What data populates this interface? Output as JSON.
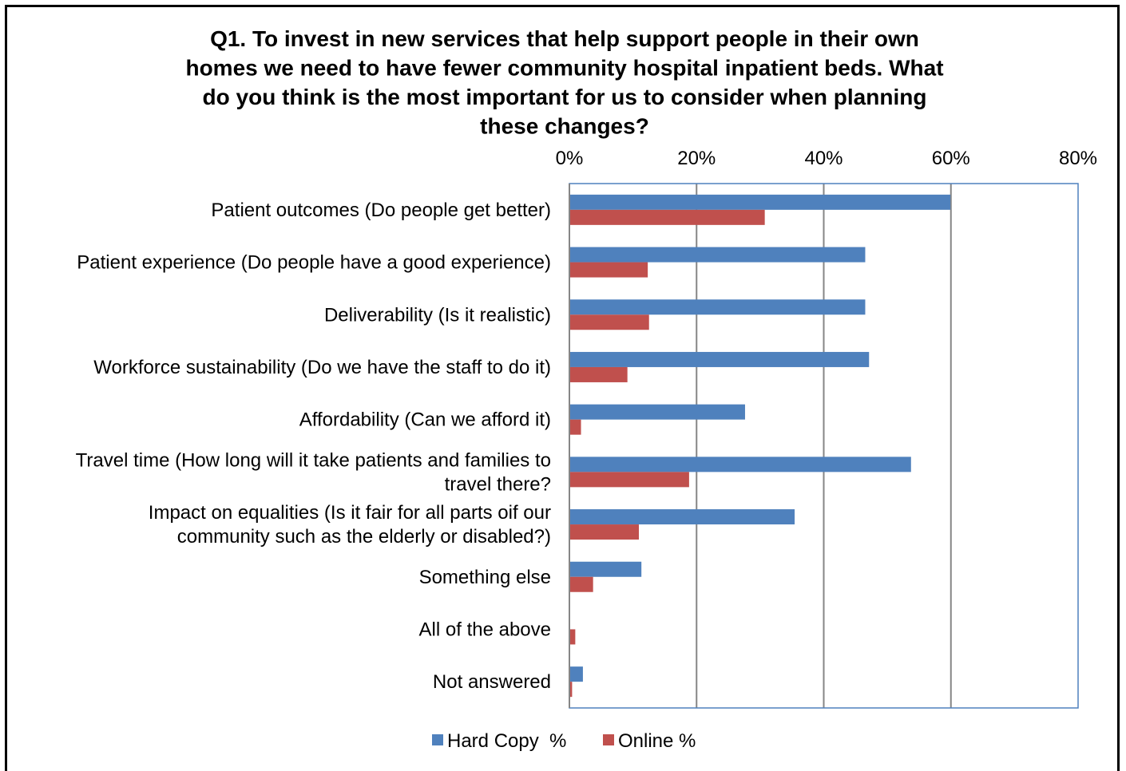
{
  "chart_data": {
    "type": "bar",
    "orientation": "horizontal",
    "title": "Q1. To invest in new services that help support people in their own homes we need to have fewer community hospital inpatient beds. What do you think is the most important for us to consider when planning these changes?",
    "title_lines": [
      "Q1. To invest in new services that help support people in their own",
      "homes we need to have fewer community hospital inpatient beds. What",
      "do you think is the most important for us to consider when planning",
      "these changes?"
    ],
    "xlim": [
      0,
      80
    ],
    "x_ticks": [
      "0%",
      "20%",
      "40%",
      "60%",
      "80%"
    ],
    "x_tick_values": [
      0,
      20,
      40,
      60,
      80
    ],
    "grid": true,
    "legend_position": "bottom",
    "categories": [
      [
        "Patient outcomes (Do people get better)"
      ],
      [
        "Patient experience (Do people have a good experience)"
      ],
      [
        "Deliverability (Is it realistic)"
      ],
      [
        "Workforce sustainability (Do we have the staff to do it)"
      ],
      [
        "Affordability (Can we afford it)"
      ],
      [
        "Travel time (How long will it take patients and families to",
        "travel there?"
      ],
      [
        "Impact on equalities (Is it fair for all parts oif our",
        "community such as the elderly or disabled?)"
      ],
      [
        "Something else"
      ],
      [
        "All of the above"
      ],
      [
        "Not answered"
      ]
    ],
    "series": [
      {
        "name": "Hard Copy  %",
        "color": "#4f81bd",
        "values": [
          59.8,
          46.4,
          46.4,
          47.0,
          27.5,
          53.6,
          35.3,
          11.2,
          0.0,
          2.0
        ]
      },
      {
        "name": "Online %",
        "color": "#c0504d",
        "values": [
          30.6,
          12.2,
          12.4,
          9.0,
          1.7,
          18.7,
          10.8,
          3.6,
          0.8,
          0.3
        ]
      }
    ]
  }
}
